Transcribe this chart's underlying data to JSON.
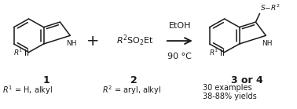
{
  "bg_color": "#ffffff",
  "label1": "1",
  "label2": "2",
  "label3": "3 or 4",
  "r1_bottom": "R¹ = H, alkyl",
  "r2_bottom": "R² = aryl, alkyl",
  "examples": "30 examples",
  "yields": "38-88% yields",
  "reagent_top": "EtOH",
  "reagent_bot": "90 °C",
  "line_color": "#1a1a1a",
  "lw": 1.1,
  "figw": 3.78,
  "figh": 1.39,
  "dpi": 100
}
